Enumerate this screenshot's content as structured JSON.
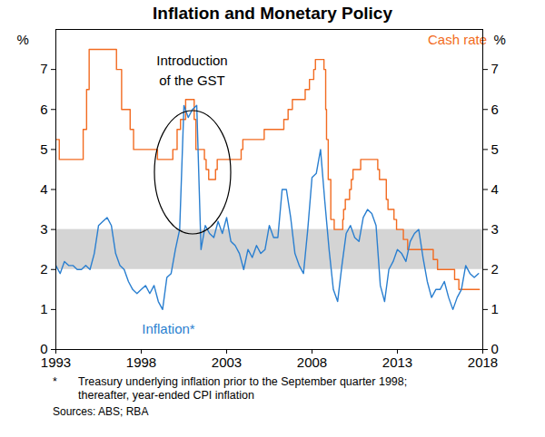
{
  "chart_data": {
    "type": "line",
    "title": "Inflation and Monetary Policy",
    "y_label": "%",
    "y2_label": "%",
    "xlim": [
      1993,
      2018
    ],
    "xticks": [
      1993,
      1998,
      2003,
      2008,
      2013,
      2018
    ],
    "ylim": [
      0,
      8
    ],
    "yticks": [
      0,
      1,
      2,
      3,
      4,
      5,
      6,
      7
    ],
    "y2lim": [
      0,
      8
    ],
    "y2ticks": [
      0,
      1,
      2,
      3,
      4,
      5,
      6,
      7
    ],
    "grid": false,
    "shaded_band": {
      "from": 2,
      "to": 3,
      "color": "#d4d4d4"
    },
    "annotations": [
      {
        "text": "Introduction\nof the GST"
      }
    ],
    "series": [
      {
        "name": "Cash rate",
        "color": "#f26b21",
        "line_style": "step",
        "x": [
          1993.0,
          1993.2,
          1994.6,
          1994.8,
          1994.95,
          1996.55,
          1996.85,
          1997.35,
          1997.55,
          1998.95,
          1999.85,
          2000.1,
          2000.3,
          2000.6,
          2001.1,
          2001.2,
          2001.7,
          2001.8,
          2001.95,
          2002.35,
          2002.45,
          2003.85,
          2003.95,
          2005.2,
          2006.35,
          2006.6,
          2006.85,
          2007.6,
          2007.85,
          2008.1,
          2008.2,
          2008.7,
          2008.8,
          2008.85,
          2008.95,
          2009.1,
          2009.3,
          2009.8,
          2009.85,
          2009.95,
          2010.2,
          2010.3,
          2010.4,
          2010.85,
          2011.85,
          2011.95,
          2012.35,
          2012.45,
          2012.8,
          2012.95,
          2013.35,
          2013.6,
          2015.1,
          2015.35,
          2016.35,
          2016.6,
          2017.8
        ],
        "values": [
          5.25,
          4.75,
          5.5,
          6.5,
          7.5,
          7.0,
          6.0,
          5.5,
          5.0,
          4.75,
          5.0,
          5.5,
          5.75,
          6.25,
          5.75,
          5.0,
          4.75,
          4.5,
          4.25,
          4.5,
          4.75,
          5.0,
          5.25,
          5.5,
          5.75,
          6.0,
          6.25,
          6.5,
          6.75,
          7.0,
          7.25,
          7.0,
          6.0,
          5.25,
          4.25,
          3.25,
          3.0,
          3.25,
          3.5,
          3.75,
          4.0,
          4.25,
          4.5,
          4.75,
          4.5,
          4.25,
          3.75,
          3.5,
          3.25,
          3.0,
          2.75,
          2.5,
          2.25,
          2.0,
          1.75,
          1.5,
          1.5
        ]
      },
      {
        "name": "Inflation*",
        "color": "#2a7fd0",
        "line_style": "solid",
        "x": [
          1993.0,
          1993.25,
          1993.5,
          1993.75,
          1994.0,
          1994.25,
          1994.5,
          1994.75,
          1995.0,
          1995.25,
          1995.5,
          1995.75,
          1996.0,
          1996.25,
          1996.5,
          1996.75,
          1997.0,
          1997.25,
          1997.5,
          1997.75,
          1998.0,
          1998.25,
          1998.5,
          1998.75,
          1999.0,
          1999.25,
          1999.5,
          1999.75,
          2000.0,
          2000.25,
          2000.5,
          2000.75,
          2001.0,
          2001.25,
          2001.5,
          2001.75,
          2002.0,
          2002.25,
          2002.5,
          2002.75,
          2003.0,
          2003.25,
          2003.5,
          2003.75,
          2004.0,
          2004.25,
          2004.5,
          2004.75,
          2005.0,
          2005.25,
          2005.5,
          2005.75,
          2006.0,
          2006.25,
          2006.5,
          2006.75,
          2007.0,
          2007.25,
          2007.5,
          2007.75,
          2008.0,
          2008.25,
          2008.5,
          2008.75,
          2009.0,
          2009.25,
          2009.5,
          2009.75,
          2010.0,
          2010.25,
          2010.5,
          2010.75,
          2011.0,
          2011.25,
          2011.5,
          2011.75,
          2012.0,
          2012.25,
          2012.5,
          2012.75,
          2013.0,
          2013.25,
          2013.5,
          2013.75,
          2014.0,
          2014.25,
          2014.5,
          2014.75,
          2015.0,
          2015.25,
          2015.5,
          2015.75,
          2016.0,
          2016.25,
          2016.5,
          2016.75,
          2017.0,
          2017.25,
          2017.5,
          2017.75
        ],
        "values": [
          2.1,
          1.9,
          2.2,
          2.1,
          2.1,
          2.0,
          2.0,
          2.1,
          2.0,
          2.4,
          3.1,
          3.2,
          3.3,
          3.1,
          2.4,
          2.1,
          2.0,
          1.7,
          1.5,
          1.4,
          1.5,
          1.6,
          1.4,
          1.6,
          1.2,
          1.0,
          1.8,
          1.9,
          2.5,
          3.0,
          6.1,
          5.8,
          6.0,
          6.1,
          2.5,
          3.1,
          2.9,
          2.8,
          3.2,
          2.9,
          3.3,
          2.7,
          2.6,
          2.4,
          2.0,
          2.5,
          2.3,
          2.6,
          2.4,
          2.5,
          3.1,
          2.8,
          2.8,
          4.0,
          4.0,
          3.3,
          2.4,
          2.1,
          1.9,
          3.0,
          4.3,
          4.4,
          5.0,
          3.7,
          2.5,
          1.5,
          1.2,
          2.1,
          2.9,
          3.1,
          2.8,
          2.7,
          3.3,
          3.5,
          3.4,
          3.1,
          1.6,
          1.2,
          2.0,
          2.2,
          2.5,
          2.4,
          2.2,
          2.7,
          2.9,
          3.0,
          2.3,
          1.7,
          1.3,
          1.5,
          1.5,
          1.7,
          1.3,
          1.0,
          1.3,
          1.5,
          2.1,
          1.9,
          1.8,
          1.9
        ]
      }
    ],
    "footnote": {
      "marker": "*",
      "text": "Treasury underlying inflation prior to the September quarter 1998;\nthereafter, year-ended CPI inflation"
    },
    "sources": "Sources: ABS; RBA"
  }
}
